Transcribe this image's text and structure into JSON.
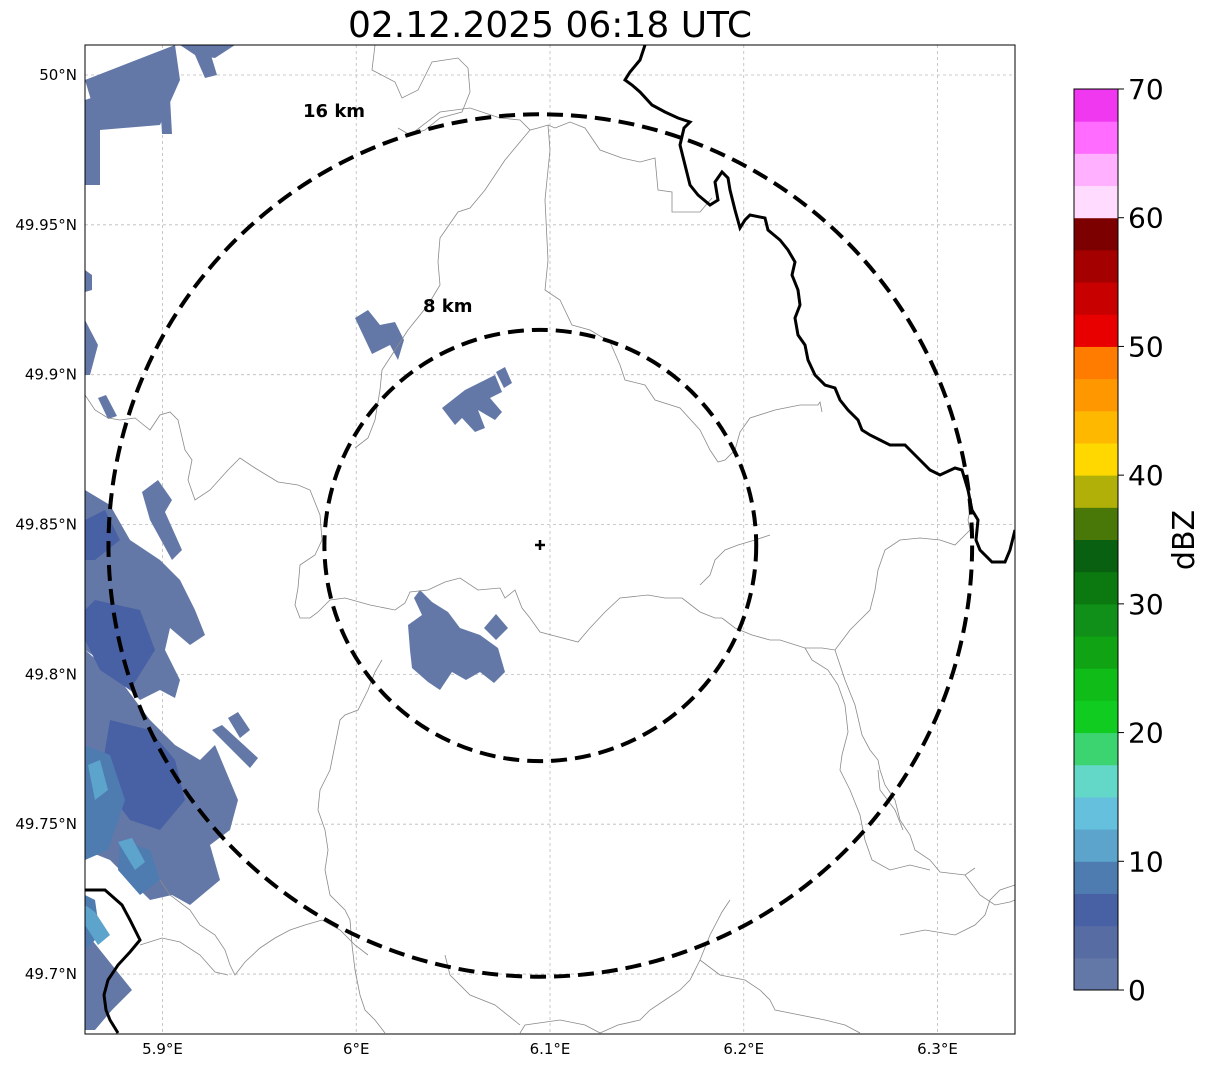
{
  "title": "02.12.2025 06:18 UTC",
  "map": {
    "lon_range": [
      5.86,
      6.34
    ],
    "lat_range": [
      49.68,
      50.01
    ],
    "lon_ticks": [
      {
        "v": 5.9,
        "label": "5.9°E"
      },
      {
        "v": 6.0,
        "label": "6°E"
      },
      {
        "v": 6.1,
        "label": "6.1°E"
      },
      {
        "v": 6.2,
        "label": "6.2°E"
      },
      {
        "v": 6.3,
        "label": "6.3°E"
      }
    ],
    "lat_ticks": [
      {
        "v": 50.0,
        "label": "50°N"
      },
      {
        "v": 49.95,
        "label": "49.95°N"
      },
      {
        "v": 49.9,
        "label": "49.9°N"
      },
      {
        "v": 49.85,
        "label": "49.85°N"
      },
      {
        "v": 49.8,
        "label": "49.8°N"
      },
      {
        "v": 49.75,
        "label": "49.75°N"
      },
      {
        "v": 49.7,
        "label": "49.7°N"
      }
    ],
    "gridlines": true,
    "radar_center": {
      "lon": 6.095,
      "lat": 49.843
    },
    "range_rings": [
      {
        "radius_km": 8,
        "label": "8 km"
      },
      {
        "radius_km": 16,
        "label": "16 km"
      }
    ]
  },
  "colorbar": {
    "label": "dBZ",
    "min": 0,
    "max": 70,
    "tick_values": [
      0,
      10,
      20,
      30,
      40,
      50,
      60,
      70
    ],
    "tick_labels": [
      "0",
      "10",
      "20",
      "30",
      "40",
      "50",
      "60",
      "70"
    ],
    "colors": [
      "#6478a8",
      "#586ca4",
      "#4860a4",
      "#4e7cb0",
      "#5ca4cc",
      "#64c0dc",
      "#64d8c8",
      "#3cd470",
      "#10cc20",
      "#10bc18",
      "#10a414",
      "#109018",
      "#0c7810",
      "#086010",
      "#4a7808",
      "#b0b008",
      "#ffd800",
      "#ffb800",
      "#ff9800",
      "#ff7c00",
      "#e80000",
      "#c80000",
      "#a40000",
      "#7c0000",
      "#ffdcff",
      "#ffb0ff",
      "#ff6cff",
      "#f038f0"
    ]
  }
}
